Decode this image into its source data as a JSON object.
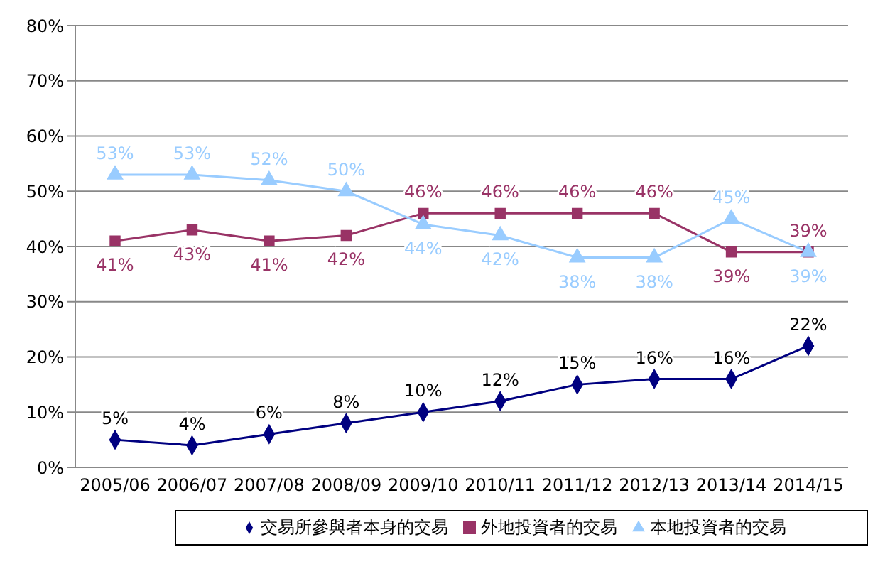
{
  "chart_data": {
    "type": "line",
    "categories": [
      "2005/06",
      "2006/07",
      "2007/08",
      "2008/09",
      "2009/10",
      "2010/11",
      "2011/12",
      "2012/13",
      "2013/14",
      "2014/15"
    ],
    "series": [
      {
        "name": "交易所參與者本身的交易",
        "color": "#000080",
        "marker": "diamond",
        "values": [
          5,
          4,
          6,
          8,
          10,
          12,
          15,
          16,
          16,
          22
        ],
        "value_labels": [
          "5%",
          "4%",
          "6%",
          "8%",
          "10%",
          "12%",
          "15%",
          "16%",
          "16%",
          "22%"
        ]
      },
      {
        "name": "外地投資者的交易",
        "color": "#993366",
        "marker": "square",
        "values": [
          41,
          43,
          41,
          42,
          46,
          46,
          46,
          46,
          39,
          39
        ],
        "value_labels": [
          "41%",
          "43%",
          "41%",
          "42%",
          "46%",
          "46%",
          "46%",
          "46%",
          "39%",
          "39%"
        ]
      },
      {
        "name": "本地投資者的交易",
        "color": "#99ccff",
        "marker": "triangle",
        "values": [
          53,
          53,
          52,
          50,
          44,
          42,
          38,
          38,
          45,
          39
        ],
        "value_labels": [
          "53%",
          "53%",
          "52%",
          "50%",
          "44%",
          "42%",
          "38%",
          "38%",
          "45%",
          "39%"
        ]
      }
    ],
    "ylim": [
      0,
      80
    ],
    "yticks": [
      {
        "value": 0,
        "label": "0%"
      },
      {
        "value": 10,
        "label": "10%"
      },
      {
        "value": 20,
        "label": "20%"
      },
      {
        "value": 30,
        "label": "30%"
      },
      {
        "value": 40,
        "label": "40%"
      },
      {
        "value": 50,
        "label": "50%"
      },
      {
        "value": 60,
        "label": "60%"
      },
      {
        "value": 70,
        "label": "70%"
      },
      {
        "value": 80,
        "label": "80%"
      }
    ],
    "grid": "y",
    "legend": "bottom",
    "line_style": "solid"
  }
}
